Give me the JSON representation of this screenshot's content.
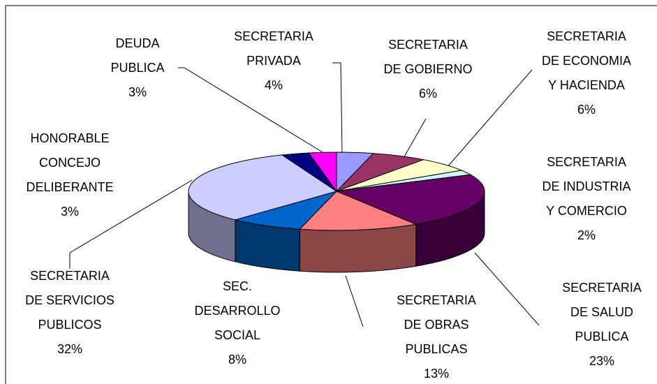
{
  "chart_data": {
    "type": "pie3d",
    "categories": [
      "SECRETARIA PRIVADA",
      "SECRETARIA DE GOBIERNO",
      "SECRETARIA DE ECONOMIA Y HACIENDA",
      "SECRETARIA DE INDUSTRIA Y COMERCIO",
      "SECRETARIA DE SALUD PUBLICA",
      "SECRETARIA DE OBRAS PUBLICAS",
      "SEC. DESARROLLO SOCIAL",
      "SECRETARIA DE SERVICIOS PUBLICOS",
      "HONORABLE CONCEJO DELIBERANTE",
      "DEUDA PUBLICA"
    ],
    "values": [
      4,
      6,
      6,
      2,
      23,
      13,
      8,
      32,
      3,
      3
    ],
    "value_labels": [
      "4%",
      "6%",
      "6%",
      "2%",
      "23%",
      "13%",
      "8%",
      "32%",
      "3%",
      "3%"
    ],
    "colors": [
      "#9999ff",
      "#993366",
      "#ffffcc",
      "#ccffff",
      "#660066",
      "#ff8080",
      "#0066cc",
      "#ccccff",
      "#000080",
      "#ff00ff"
    ]
  }
}
